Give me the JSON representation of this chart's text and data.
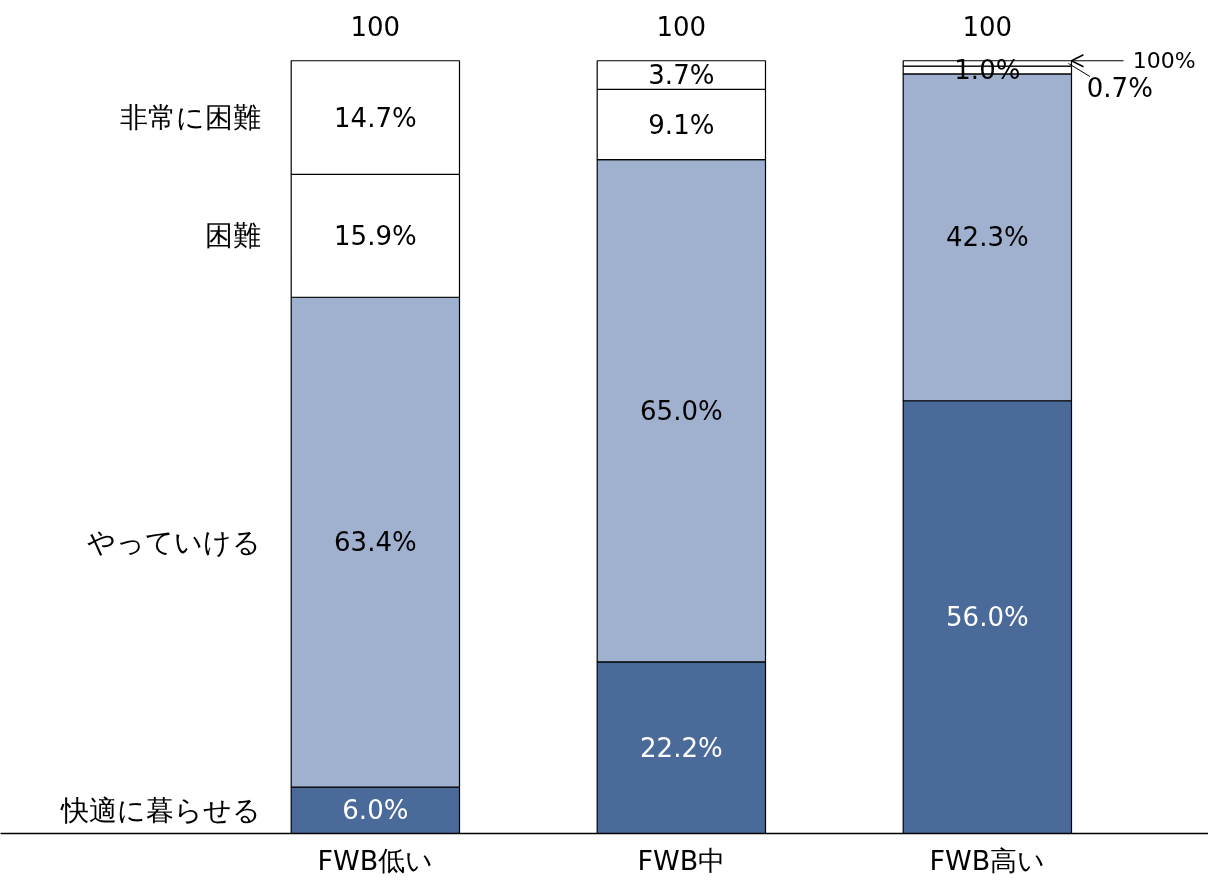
{
  "chart_data": {
    "type": "bar",
    "stacked": true,
    "categories": [
      "FWB低い",
      "FWB中",
      "FWB高い"
    ],
    "series": [
      {
        "name": "快適に暮らせる",
        "color": "#4a6a9a",
        "values": [
          6.0,
          22.2,
          56.0
        ],
        "value_labels": [
          "6.0%",
          "22.2%",
          "56.0%"
        ]
      },
      {
        "name": "やっていける",
        "color": "#9fb1cf",
        "values": [
          63.4,
          65.0,
          42.3
        ],
        "value_labels": [
          "63.4%",
          "65.0%",
          "42.3%"
        ]
      },
      {
        "name": "困難",
        "color": "#ffffff",
        "values": [
          15.9,
          9.1,
          1.0
        ],
        "value_labels": [
          "15.9%",
          "9.1%",
          "1.0%"
        ]
      },
      {
        "name": "非常に困難",
        "color": "#ffffff",
        "values": [
          14.7,
          3.7,
          0.7
        ],
        "value_labels": [
          "14.7%",
          "3.7%",
          "0.7%"
        ]
      }
    ],
    "totals": [
      "100",
      "100",
      "100"
    ],
    "annotations": [
      "100%"
    ],
    "tick_labels": "x",
    "grid": false
  }
}
